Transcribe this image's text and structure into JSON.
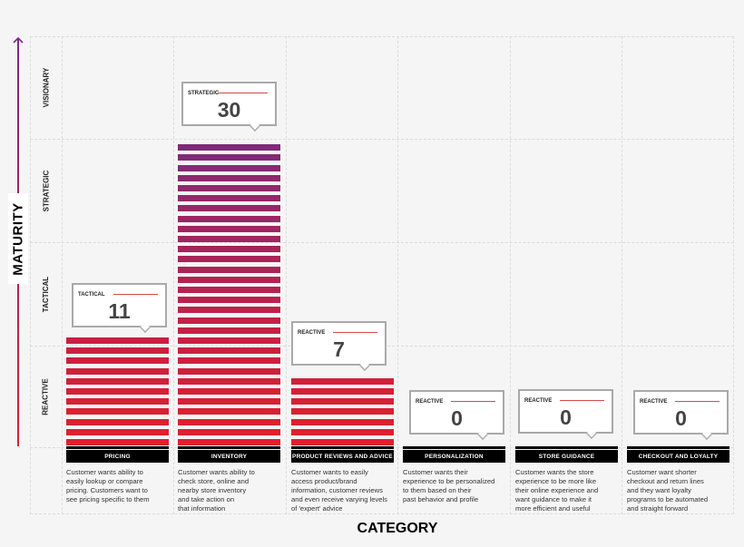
{
  "chart_data": {
    "type": "bar",
    "title": "",
    "xlabel": "CATEGORY",
    "ylabel": "MATURITY",
    "y_levels": [
      "REACTIVE",
      "TACTICAL",
      "STRATEGIC",
      "VISIONARY"
    ],
    "categories": [
      "PRICING",
      "INVENTORY",
      "PRODUCT REVIEWS AND ADVICE",
      "PERSONALIZATION",
      "STORE GUIDANCE",
      "CHECKOUT AND LOYALTY"
    ],
    "values": [
      11,
      30,
      7,
      0,
      0,
      0
    ],
    "maturity": [
      "TACTICAL",
      "STRATEGIC",
      "REACTIVE",
      "REACTIVE",
      "REACTIVE",
      "REACTIVE"
    ],
    "grid": true,
    "legend": "none"
  },
  "axis": {
    "y_title": "MATURITY",
    "x_title": "CATEGORY",
    "rows": [
      "VISIONARY",
      "STRATEGIC",
      "TACTICAL",
      "REACTIVE"
    ]
  },
  "colors": {
    "stripe_top": "#7e2a7a",
    "stripe_bottom": "#e3202a",
    "label_bg": "#000000",
    "callout_rule": "#d54a4a"
  },
  "columns": [
    {
      "label": "PRICING",
      "value": "11",
      "level": "TACTICAL",
      "desc": [
        "Customer wants ability to",
        "easily lookup or compare",
        "pricing. Customers want to",
        "see pricing specific to them"
      ]
    },
    {
      "label": "INVENTORY",
      "value": "30",
      "level": "STRATEGIC",
      "desc": [
        "Customer wants ability to",
        "check store, online and",
        "nearby store inventory",
        "and take action on",
        "that information"
      ]
    },
    {
      "label": "PRODUCT REVIEWS AND ADVICE",
      "value": "7",
      "level": "REACTIVE",
      "desc": [
        "Customer wants to easily",
        "access product/brand",
        "information, customer reviews",
        "and even receive varying levels",
        "of 'expert' advice"
      ]
    },
    {
      "label": "PERSONALIZATION",
      "value": "0",
      "level": "REACTIVE",
      "desc": [
        "Customer wants their",
        "experience to be personalized",
        "to them based on their",
        "past behavior and profile"
      ]
    },
    {
      "label": "STORE GUIDANCE",
      "value": "0",
      "level": "REACTIVE",
      "desc": [
        "Customer wants the store",
        "experience to be more like",
        "their online experience and",
        "want guidance to make it",
        "more efficient and useful"
      ]
    },
    {
      "label": "CHECKOUT AND LOYALTY",
      "value": "0",
      "level": "REACTIVE",
      "desc": [
        "Customer want shorter",
        "checkout and return lines",
        "and they want loyalty",
        "programs to be automated",
        "and straight forward"
      ]
    }
  ]
}
